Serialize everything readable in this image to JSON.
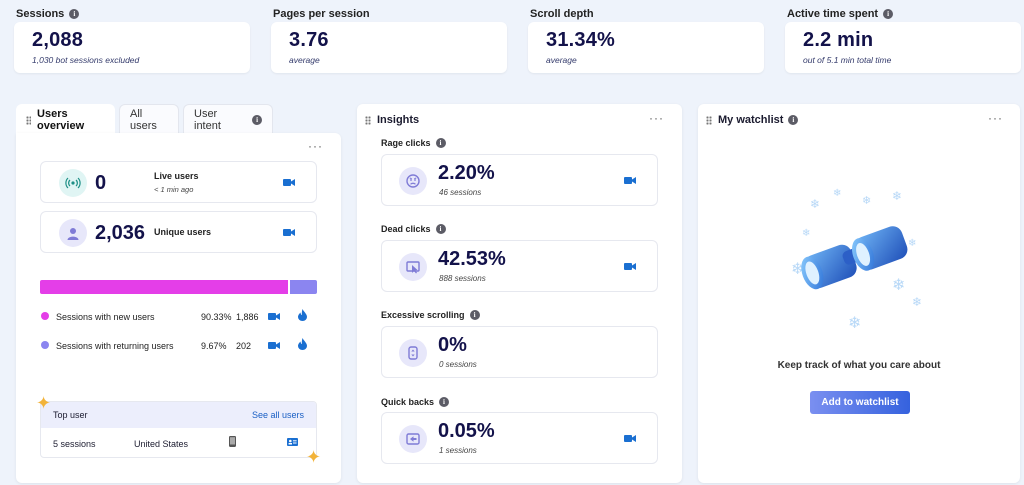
{
  "kpis": [
    {
      "label": "Sessions",
      "value": "2,088",
      "sub": "1,030 bot sessions excluded",
      "has_info": true
    },
    {
      "label": "Pages per session",
      "value": "3.76",
      "sub": "average",
      "has_info": false
    },
    {
      "label": "Scroll depth",
      "value": "31.34%",
      "sub": "average",
      "has_info": false
    },
    {
      "label": "Active time spent",
      "value": "2.2 min",
      "sub": "out of 5.1 min total time",
      "has_info": true
    }
  ],
  "users_panel": {
    "tabs": [
      "Users overview",
      "All users",
      "User intent"
    ],
    "more": "···",
    "live": {
      "value": "0",
      "label": "Live users",
      "sub": "< 1 min ago"
    },
    "unique": {
      "value": "2,036",
      "label": "Unique users"
    },
    "new_ratio": 0.9033,
    "legend": [
      {
        "label": "Sessions with new users",
        "percent": "90.33%",
        "count": "1,886",
        "color": "#e43ee8"
      },
      {
        "label": "Sessions with returning users",
        "percent": "9.67%",
        "count": "202",
        "color": "#8b85f0"
      }
    ],
    "top_user": {
      "title": "Top user",
      "link": "See all users",
      "sessions": "5 sessions",
      "country": "United States"
    }
  },
  "insights": {
    "title": "Insights",
    "more": "···",
    "items": [
      {
        "label": "Rage clicks",
        "value": "2.20%",
        "sub": "46 sessions",
        "icon": "angry-face-icon"
      },
      {
        "label": "Dead clicks",
        "value": "42.53%",
        "sub": "888 sessions",
        "icon": "dead-click-icon"
      },
      {
        "label": "Excessive scrolling",
        "value": "0%",
        "sub": "0 sessions",
        "icon": "scroll-icon"
      },
      {
        "label": "Quick backs",
        "value": "0.05%",
        "sub": "1 sessions",
        "icon": "quick-back-icon"
      }
    ]
  },
  "watchlist": {
    "title": "My watchlist",
    "more": "···",
    "message": "Keep track of what you care about",
    "button": "Add to watchlist"
  },
  "colors": {
    "accent": "#1a5fc4",
    "navy": "#13124a",
    "magenta": "#e43ee8",
    "violet": "#8b85f0"
  }
}
